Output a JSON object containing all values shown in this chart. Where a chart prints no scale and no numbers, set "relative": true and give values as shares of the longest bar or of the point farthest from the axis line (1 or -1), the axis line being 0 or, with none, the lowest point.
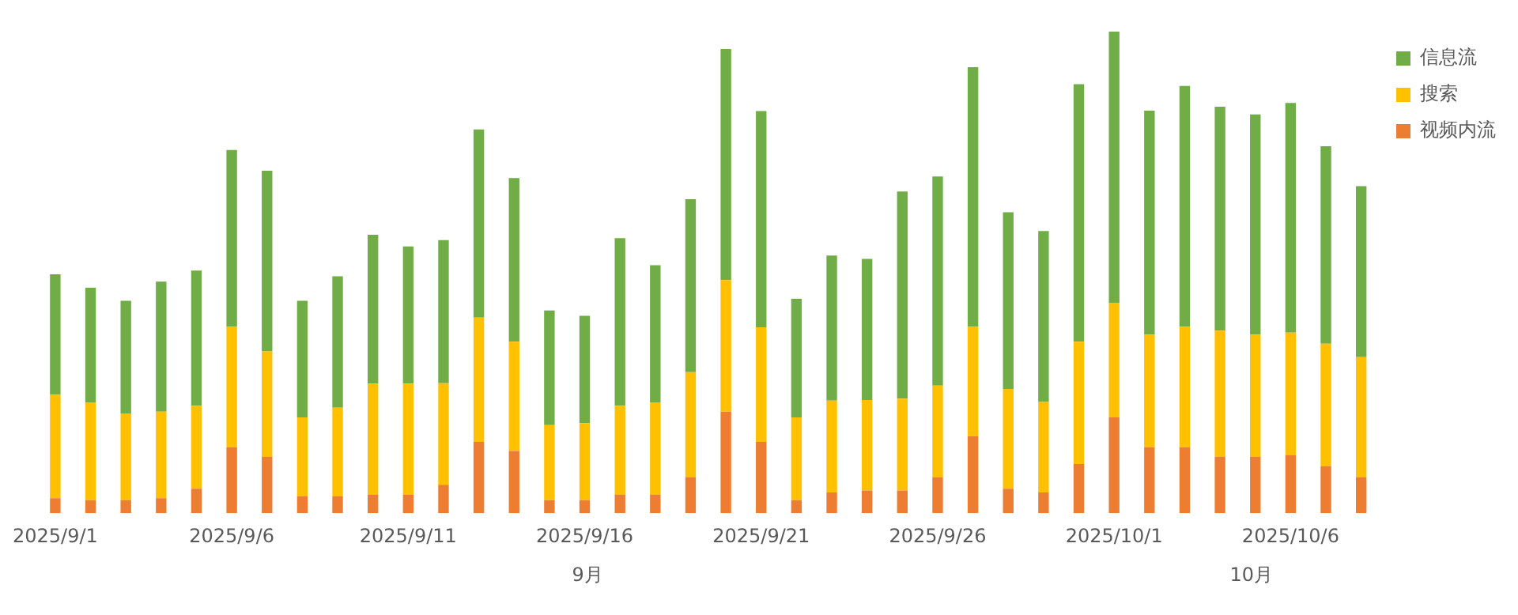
{
  "chart_data": {
    "type": "bar",
    "stacked": true,
    "relative": true,
    "legend": "top right",
    "grid": false,
    "categories": [
      "2025/9/1",
      null,
      null,
      null,
      null,
      "2025/9/6",
      null,
      null,
      null,
      null,
      "2025/9/11",
      null,
      null,
      null,
      null,
      "2025/9/16",
      null,
      null,
      null,
      null,
      "2025/9/21",
      null,
      null,
      null,
      null,
      "2025/9/26",
      null,
      null,
      null,
      null,
      "2025/10/1",
      null,
      null,
      null,
      null,
      "2025/10/6",
      null,
      null
    ],
    "series": [
      {
        "name": "视频内流",
        "color": "#ed7d31",
        "values": [
          0.031,
          0.027,
          0.027,
          0.031,
          0.051,
          0.137,
          0.117,
          0.035,
          0.035,
          0.039,
          0.039,
          0.059,
          0.148,
          0.129,
          0.027,
          0.027,
          0.039,
          0.039,
          0.074,
          0.211,
          0.148,
          0.027,
          0.043,
          0.047,
          0.047,
          0.074,
          0.16,
          0.051,
          0.043,
          0.102,
          0.199,
          0.137,
          0.137,
          0.117,
          0.117,
          0.121,
          0.098,
          0.074
        ]
      },
      {
        "name": "搜索",
        "color": "#ffc000",
        "values": [
          0.215,
          0.203,
          0.18,
          0.18,
          0.172,
          0.25,
          0.219,
          0.164,
          0.184,
          0.23,
          0.23,
          0.211,
          0.258,
          0.227,
          0.156,
          0.16,
          0.184,
          0.191,
          0.219,
          0.273,
          0.238,
          0.172,
          0.191,
          0.188,
          0.191,
          0.191,
          0.227,
          0.207,
          0.188,
          0.254,
          0.238,
          0.234,
          0.25,
          0.262,
          0.254,
          0.254,
          0.254,
          0.25
        ]
      },
      {
        "name": "信息流",
        "color": "#70ad47",
        "values": [
          0.25,
          0.238,
          0.234,
          0.27,
          0.281,
          0.367,
          0.375,
          0.242,
          0.273,
          0.309,
          0.285,
          0.297,
          0.391,
          0.34,
          0.238,
          0.223,
          0.348,
          0.285,
          0.359,
          0.48,
          0.449,
          0.246,
          0.301,
          0.293,
          0.43,
          0.434,
          0.539,
          0.367,
          0.355,
          0.535,
          0.563,
          0.465,
          0.5,
          0.465,
          0.457,
          0.477,
          0.41,
          0.355
        ]
      }
    ],
    "annotations": [
      "9月",
      "10月"
    ]
  }
}
